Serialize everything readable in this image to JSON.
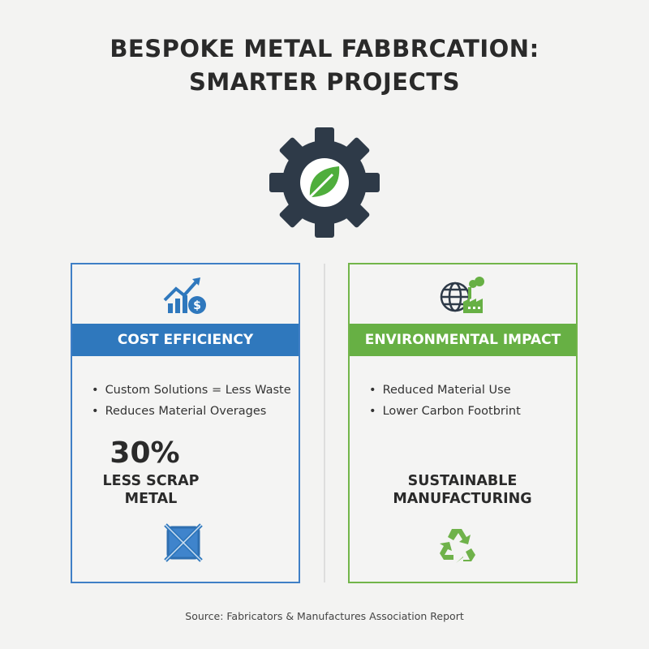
{
  "title": {
    "line1": "BESPOKE METAL FABBRCATION:",
    "line2": "SMARTER PROJECTS"
  },
  "hero_icon": "gear-with-leaf-icon",
  "colors": {
    "blue": "#2f78bd",
    "green": "#67b044",
    "dark": "#2e3a48"
  },
  "cost": {
    "icon": "chart-growth-dollar-icon",
    "heading": "COST EFFICIENCY",
    "bullets": [
      "Custom Solutions = Less Waste",
      "Reduces Material Overages"
    ],
    "stat": "30%",
    "stat_label_1": "LESS SCRAP",
    "stat_label_2": "METAL",
    "bottom_icon": "crossed-out-scrap-icon"
  },
  "env": {
    "icon": "globe-factory-icon",
    "heading": "ENVIRONMENTAL IMPACT",
    "bullets": [
      "Reduced Material Use",
      "Lower Carbon Footbrint"
    ],
    "label_1": "SUSTAINABLE",
    "label_2": "MANUFACTURING",
    "bottom_icon": "recycle-icon"
  },
  "source": "Source: Fabricators & Manufactures Association Report"
}
